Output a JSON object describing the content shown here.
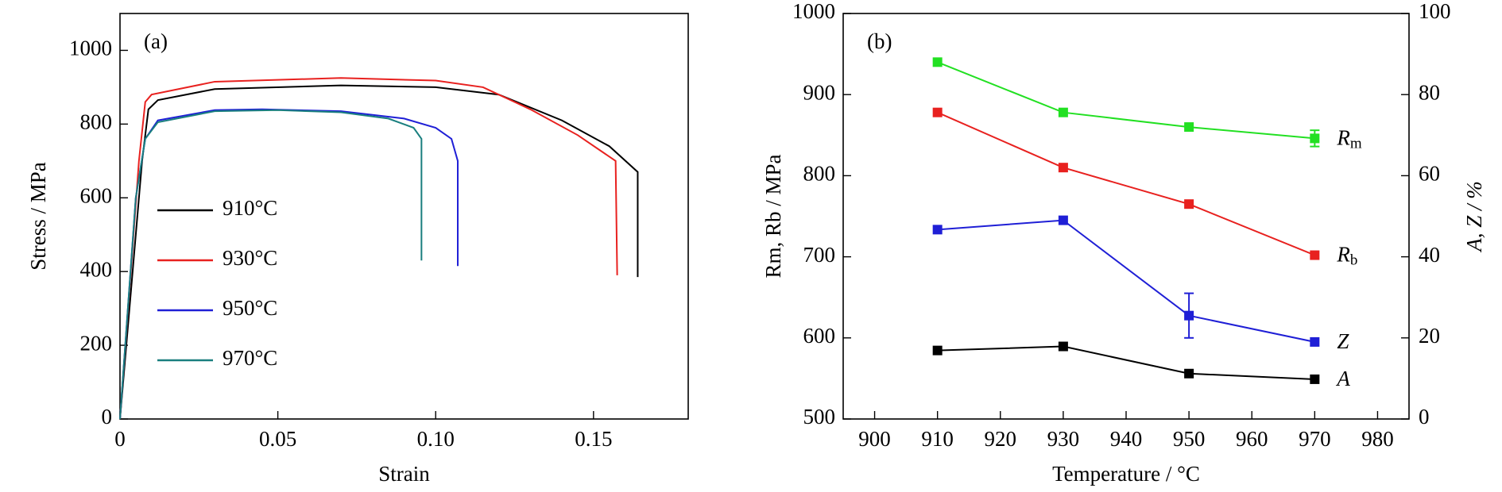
{
  "chart_data": [
    {
      "type": "line",
      "annotation": "(a)",
      "xlabel": "Strain",
      "ylabel": "Stress / MPa",
      "xlim": [
        0,
        0.18
      ],
      "xticks": [
        0,
        0.05,
        {
          "value": 0.1,
          "label": "0.10"
        },
        0.15
      ],
      "ylim": [
        0,
        1100
      ],
      "yticks": [
        0,
        200,
        400,
        600,
        800,
        1000
      ],
      "series": [
        {
          "name": "910°C",
          "color": "#000000",
          "x": [
            0,
            0.007,
            0.009,
            0.012,
            0.03,
            0.07,
            0.1,
            0.12,
            0.14,
            0.155,
            0.164,
            0.164
          ],
          "values": [
            0,
            700,
            840,
            865,
            895,
            905,
            900,
            880,
            810,
            740,
            670,
            385
          ]
        },
        {
          "name": "930°C",
          "color": "#e8211f",
          "x": [
            0,
            0.006,
            0.008,
            0.01,
            0.03,
            0.07,
            0.1,
            0.115,
            0.13,
            0.145,
            0.157,
            0.1575
          ],
          "values": [
            0,
            700,
            860,
            880,
            915,
            925,
            918,
            900,
            840,
            770,
            700,
            390
          ]
        },
        {
          "name": "950°C",
          "color": "#1f1fd6",
          "x": [
            0,
            0.005,
            0.008,
            0.012,
            0.03,
            0.045,
            0.07,
            0.09,
            0.1,
            0.105,
            0.107,
            0.107
          ],
          "values": [
            0,
            600,
            760,
            810,
            838,
            840,
            835,
            815,
            790,
            760,
            700,
            415
          ]
        },
        {
          "name": "970°C",
          "color": "#1a7f7f",
          "x": [
            0,
            0.005,
            0.008,
            0.012,
            0.03,
            0.05,
            0.07,
            0.085,
            0.093,
            0.0955,
            0.0955
          ],
          "values": [
            0,
            600,
            760,
            805,
            835,
            838,
            832,
            815,
            790,
            760,
            430
          ]
        }
      ]
    },
    {
      "type": "line",
      "annotation": "(b)",
      "xlabel": "Temperature  / °C",
      "ylabel": "Rm, Rb / MPa",
      "y2label": "A, Z / %",
      "x": [
        910,
        930,
        950,
        970
      ],
      "xlim": [
        895,
        985
      ],
      "xticks": [
        900,
        910,
        920,
        930,
        940,
        950,
        960,
        970,
        980
      ],
      "ylim": [
        500,
        1000
      ],
      "yticks": [
        500,
        600,
        700,
        800,
        900,
        1000
      ],
      "y2lim": [
        0,
        100
      ],
      "y2ticks": [
        0,
        20,
        40,
        60,
        80,
        100
      ],
      "series": [
        {
          "name": "Rm",
          "color": "#22e022",
          "values": [
            940,
            878,
            860,
            846
          ],
          "errors": [
            null,
            null,
            null,
            10
          ]
        },
        {
          "name": "Rb",
          "color": "#e8211f",
          "values": [
            878,
            810,
            765,
            702
          ]
        },
        {
          "name": "Z",
          "color": "#1f1fd6",
          "axis": "y2",
          "values": [
            46.7,
            49,
            25.5,
            19
          ],
          "errors": [
            null,
            null,
            5.5,
            null
          ]
        },
        {
          "name": "A",
          "color": "#000000",
          "axis": "y2",
          "values": [
            16.9,
            17.9,
            11.2,
            9.8
          ]
        }
      ]
    }
  ]
}
